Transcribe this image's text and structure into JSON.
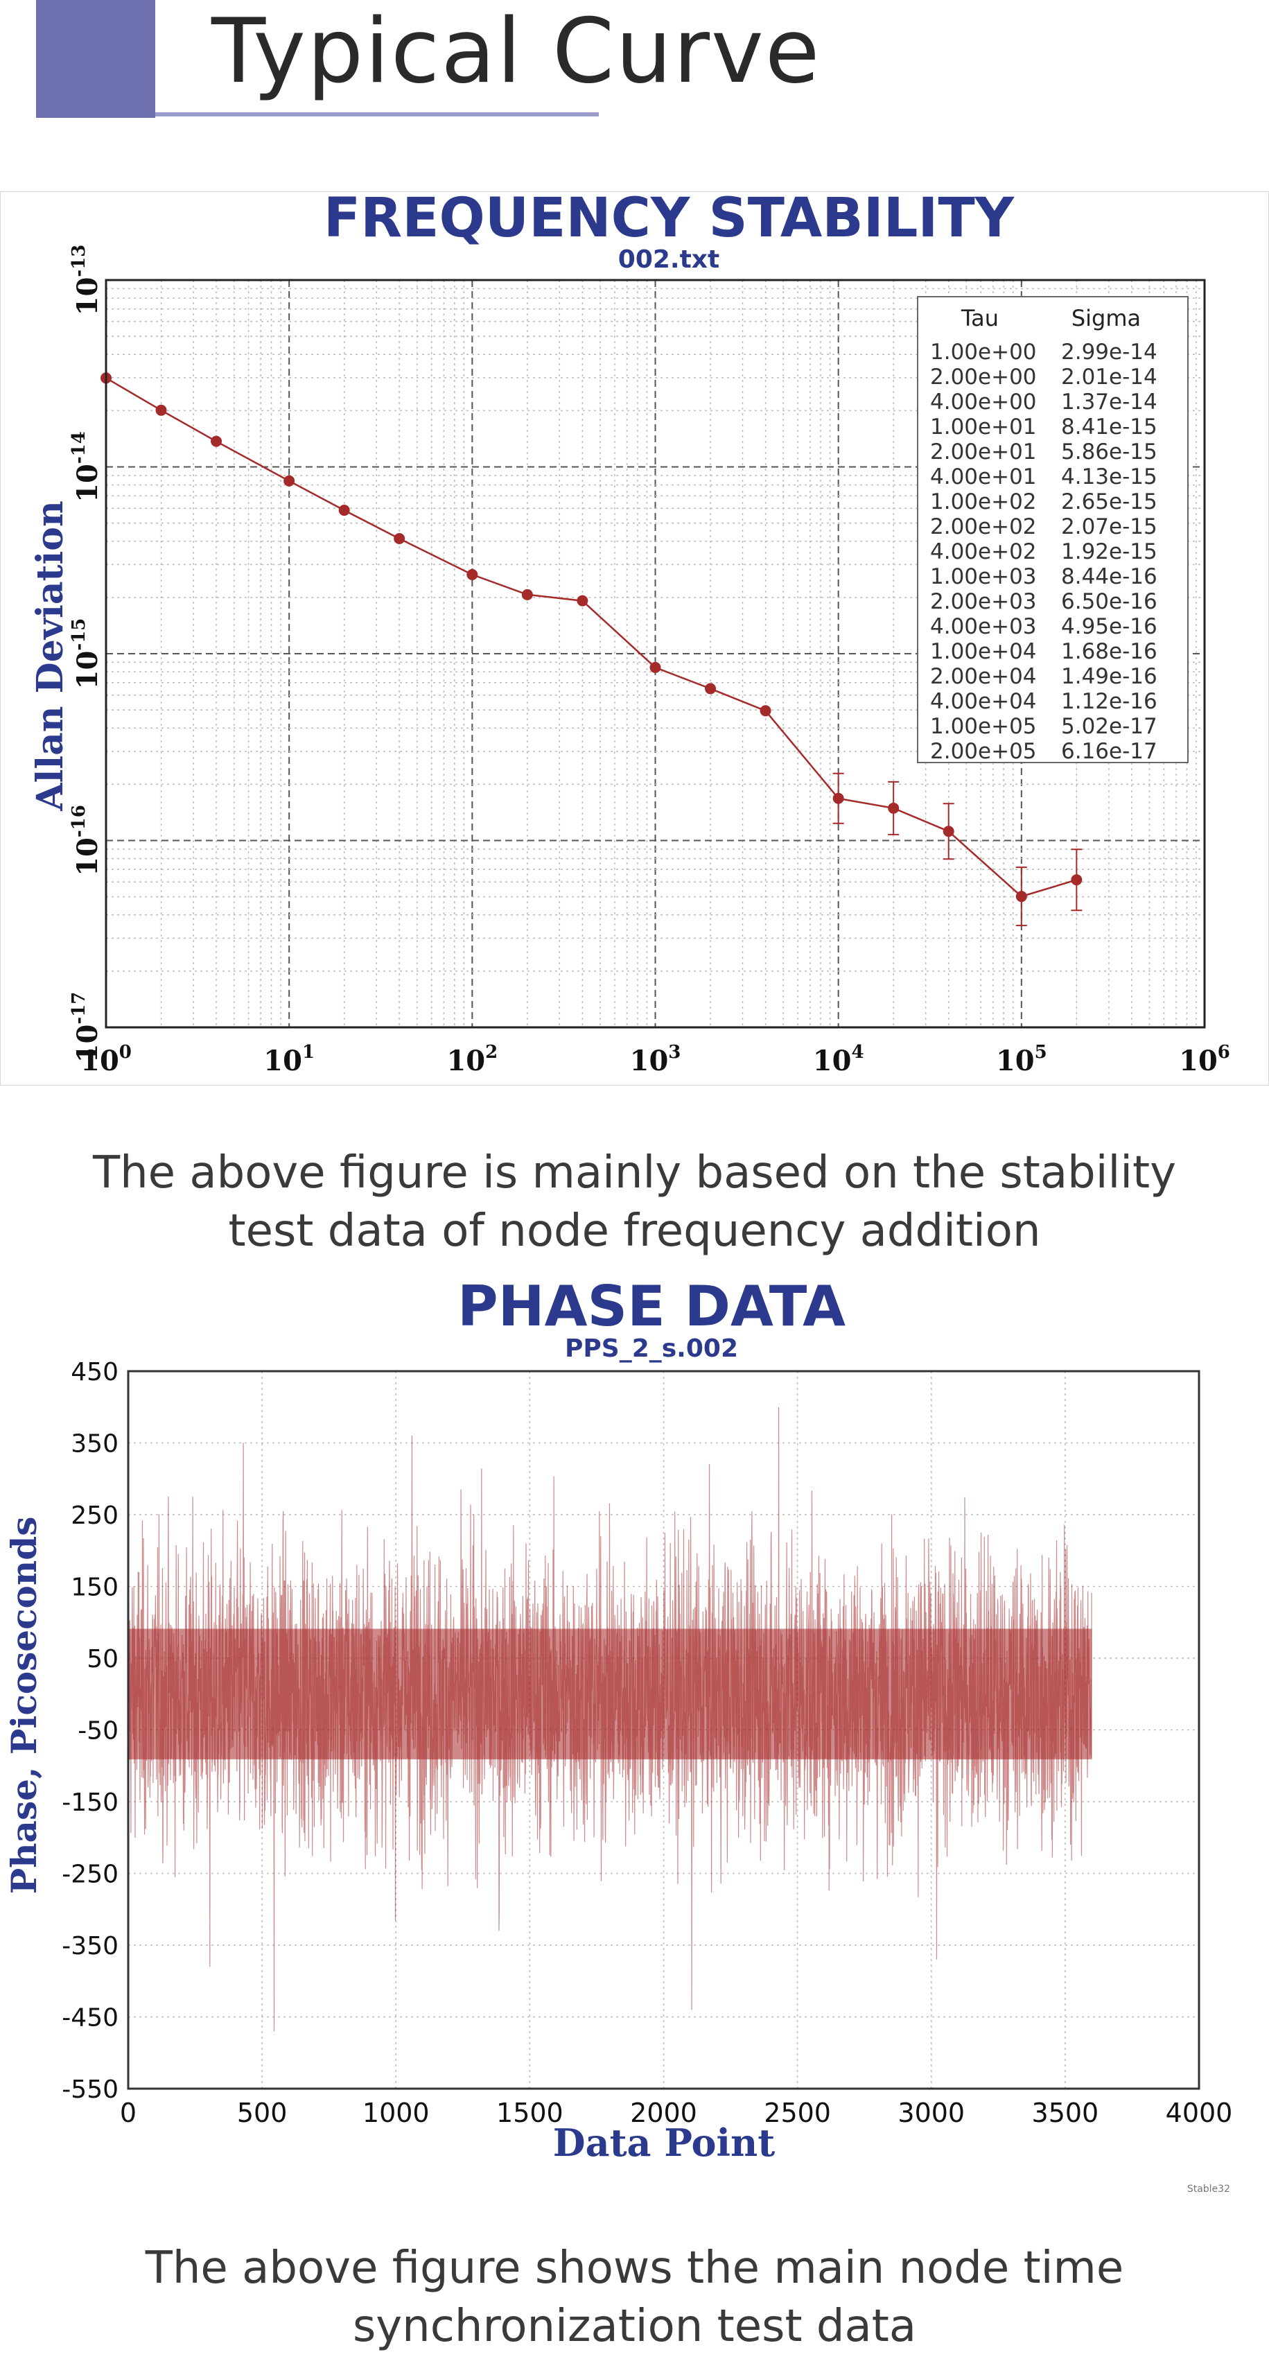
{
  "header": {
    "title": "Typical Curve"
  },
  "captions": {
    "first": [
      "The above figure is mainly based on the stability",
      "test data of node frequency addition"
    ],
    "second": [
      "The above figure shows the main node time",
      "synchronization test data"
    ]
  },
  "colors": {
    "accent": "#6d6fae",
    "title_blue": "#2b3a8c",
    "data_red": "#a52a2a"
  },
  "chart_data": [
    {
      "type": "line",
      "title": "FREQUENCY STABILITY",
      "subtitle": "002.txt",
      "xlabel": "",
      "ylabel": "Allan Deviation",
      "xscale": "log",
      "yscale": "log",
      "xlim": [
        1,
        1000000
      ],
      "ylim": [
        1e-17,
        1e-13
      ],
      "x_tick_labels": [
        {
          "base": "10",
          "exp": "0"
        },
        {
          "base": "10",
          "exp": "1"
        },
        {
          "base": "10",
          "exp": "2"
        },
        {
          "base": "10",
          "exp": "3"
        },
        {
          "base": "10",
          "exp": "4"
        },
        {
          "base": "10",
          "exp": "5"
        },
        {
          "base": "10",
          "exp": "6"
        }
      ],
      "y_tick_labels": [
        {
          "base": "10",
          "exp": "-13"
        },
        {
          "base": "10",
          "exp": "-14"
        },
        {
          "base": "10",
          "exp": "-15"
        },
        {
          "base": "10",
          "exp": "-16"
        },
        {
          "base": "10",
          "exp": "-17"
        }
      ],
      "grid": true,
      "table_header": [
        "Tau",
        "Sigma"
      ],
      "table_placement": "top-right",
      "table_rows": [
        [
          "1.00e+00",
          "2.99e-14"
        ],
        [
          "2.00e+00",
          "2.01e-14"
        ],
        [
          "4.00e+00",
          "1.37e-14"
        ],
        [
          "1.00e+01",
          "8.41e-15"
        ],
        [
          "2.00e+01",
          "5.86e-15"
        ],
        [
          "4.00e+01",
          "4.13e-15"
        ],
        [
          "1.00e+02",
          "2.65e-15"
        ],
        [
          "2.00e+02",
          "2.07e-15"
        ],
        [
          "4.00e+02",
          "1.92e-15"
        ],
        [
          "1.00e+03",
          "8.44e-16"
        ],
        [
          "2.00e+03",
          "6.50e-16"
        ],
        [
          "4.00e+03",
          "4.95e-16"
        ],
        [
          "1.00e+04",
          "1.68e-16"
        ],
        [
          "2.00e+04",
          "1.49e-16"
        ],
        [
          "4.00e+04",
          "1.12e-16"
        ],
        [
          "1.00e+05",
          "5.02e-17"
        ],
        [
          "2.00e+05",
          "6.16e-17"
        ]
      ],
      "x": [
        1,
        2,
        4,
        10,
        20,
        40,
        100,
        200,
        400,
        1000,
        2000,
        4000,
        10000,
        20000,
        40000,
        100000,
        200000
      ],
      "y": [
        2.99e-14,
        2.01e-14,
        1.37e-14,
        8.41e-15,
        5.86e-15,
        4.13e-15,
        2.65e-15,
        2.07e-15,
        1.92e-15,
        8.44e-16,
        6.5e-16,
        4.95e-16,
        1.68e-16,
        1.49e-16,
        1.12e-16,
        5.02e-17,
        6.16e-17
      ],
      "error_bars_at": [
        10000,
        20000,
        40000,
        100000,
        200000
      ]
    },
    {
      "type": "line",
      "title": "PHASE DATA",
      "subtitle": "PPS_2_s.002",
      "xlabel": "Data Point",
      "ylabel": "Phase, Picoseconds",
      "xlim": [
        0,
        4000
      ],
      "ylim": [
        -550,
        450
      ],
      "x_ticks": [
        0,
        500,
        1000,
        1500,
        2000,
        2500,
        3000,
        3500,
        4000
      ],
      "y_ticks": [
        450,
        350,
        250,
        150,
        50,
        -50,
        -150,
        -250,
        -350,
        -450,
        -550
      ],
      "grid": true,
      "n_points": 3600,
      "core_band": [
        -130,
        130
      ],
      "spikes": [
        {
          "x": 430,
          "y": 350
        },
        {
          "x": 545,
          "y": -470
        },
        {
          "x": 1060,
          "y": 360
        },
        {
          "x": 2105,
          "y": -440
        },
        {
          "x": 2430,
          "y": 400
        },
        {
          "x": 305,
          "y": -380
        },
        {
          "x": 3020,
          "y": -370
        },
        {
          "x": 1385,
          "y": -330
        }
      ],
      "footnote": "Stable32"
    }
  ]
}
